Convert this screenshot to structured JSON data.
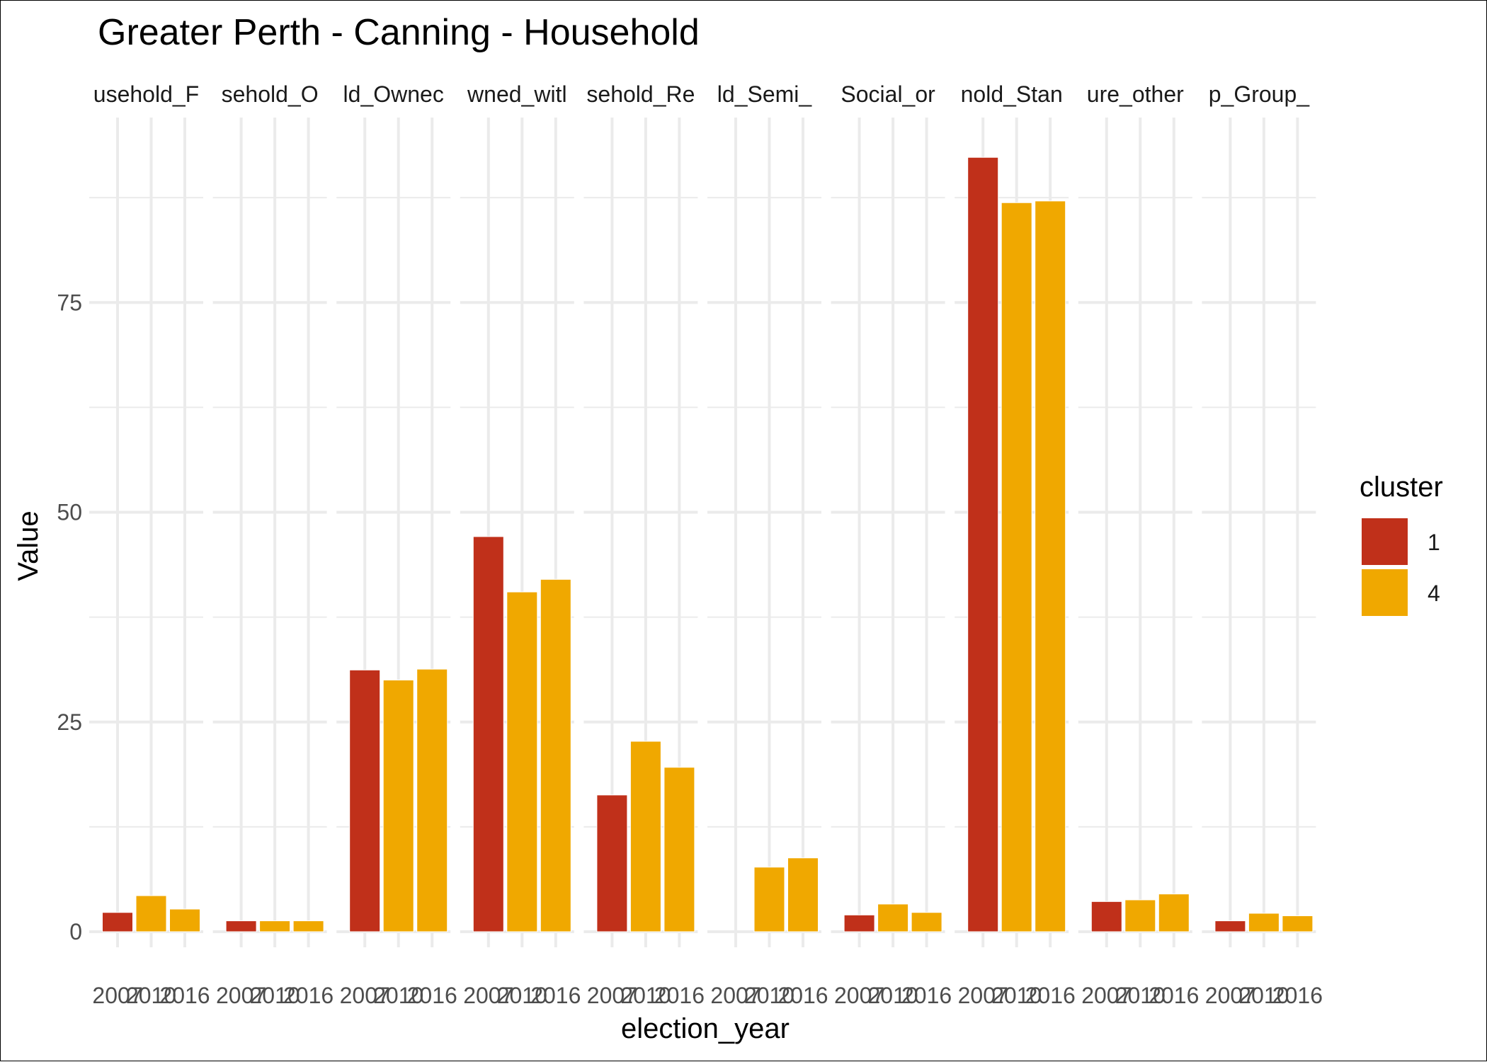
{
  "chart_data": {
    "type": "bar",
    "title": "Greater Perth - Canning - Household",
    "xlabel": "election_year",
    "ylabel": "Value",
    "ylim": [
      0,
      95
    ],
    "yticks": [
      0,
      25,
      50,
      75
    ],
    "categories": [
      "2007",
      "2010",
      "2016"
    ],
    "legend": {
      "title": "cluster",
      "placement": "right",
      "entries": [
        {
          "label": "1",
          "color": "#C0301A"
        },
        {
          "label": "4",
          "color": "#F0A800"
        }
      ]
    },
    "panels": [
      {
        "label": "usehold_F",
        "values": [
          2.3,
          4.3,
          2.7
        ],
        "clusters": [
          "1",
          "4",
          "4"
        ]
      },
      {
        "label": "sehold_O",
        "values": [
          1.3,
          1.3,
          1.3
        ],
        "clusters": [
          "1",
          "4",
          "4"
        ]
      },
      {
        "label": "ld_Ownec",
        "values": [
          31.2,
          30.0,
          31.3
        ],
        "clusters": [
          "1",
          "4",
          "4"
        ]
      },
      {
        "label": "wned_witl",
        "values": [
          47.1,
          40.5,
          42.0
        ],
        "clusters": [
          "1",
          "4",
          "4"
        ]
      },
      {
        "label": "sehold_Re",
        "values": [
          16.3,
          22.7,
          19.6
        ],
        "clusters": [
          "1",
          "4",
          "4"
        ]
      },
      {
        "label": "ld_Semi_",
        "values": [
          null,
          7.7,
          8.8
        ],
        "clusters": [
          "1",
          "4",
          "4"
        ]
      },
      {
        "label": "Social_or",
        "values": [
          2.0,
          3.3,
          2.3
        ],
        "clusters": [
          "1",
          "4",
          "4"
        ]
      },
      {
        "label": "nold_Stan",
        "values": [
          92.3,
          86.9,
          87.1
        ],
        "clusters": [
          "1",
          "4",
          "4"
        ]
      },
      {
        "label": "ure_other",
        "values": [
          3.6,
          3.8,
          4.5
        ],
        "clusters": [
          "1",
          "4",
          "4"
        ]
      },
      {
        "label": "p_Group_",
        "values": [
          1.3,
          2.2,
          1.9
        ],
        "clusters": [
          "1",
          "4",
          "4"
        ]
      }
    ]
  }
}
